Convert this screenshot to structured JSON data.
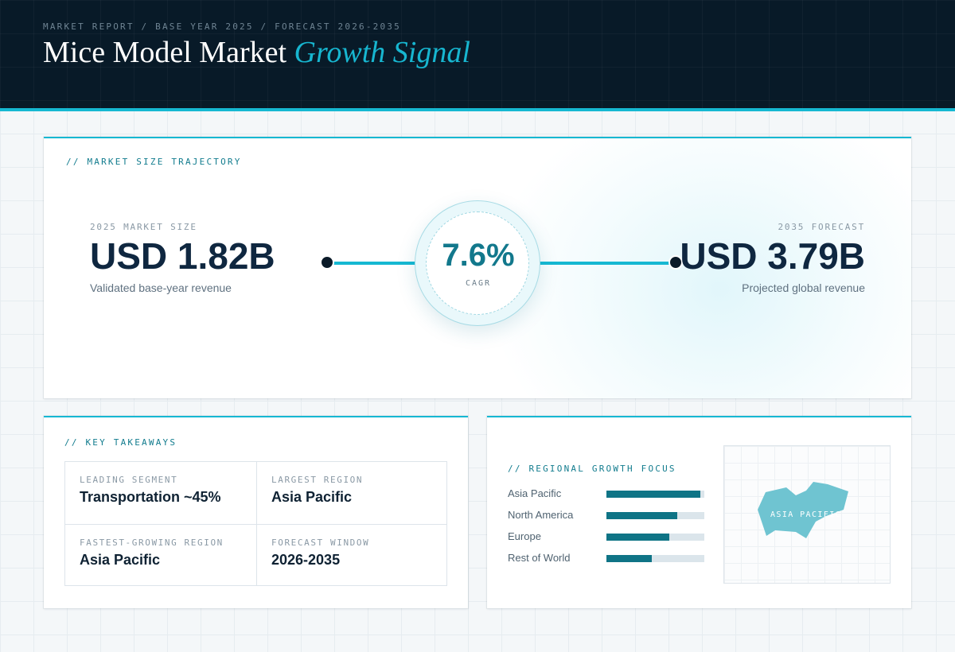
{
  "header": {
    "breadcrumb": "MARKET REPORT / BASE YEAR 2025 / FORECAST 2026-2035",
    "title_main": "Mice Model Market",
    "title_accent": "Growth Signal"
  },
  "trajectory": {
    "label": "// MARKET SIZE TRAJECTORY",
    "start": {
      "label": "2025 MARKET SIZE",
      "value": "USD 1.82B",
      "desc": "Validated base-year revenue"
    },
    "cagr": {
      "value": "7.6%",
      "label": "CAGR"
    },
    "end": {
      "label": "2035 FORECAST",
      "value": "USD 3.79B",
      "desc": "Projected global revenue"
    }
  },
  "takeaways": {
    "label": "// KEY TAKEAWAYS",
    "cells": [
      {
        "label": "LEADING SEGMENT",
        "value": "Transportation ~45%"
      },
      {
        "label": "LARGEST REGION",
        "value": "Asia Pacific"
      },
      {
        "label": "FASTEST-GROWING REGION",
        "value": "Asia Pacific"
      },
      {
        "label": "FORECAST WINDOW",
        "value": "2026-2035"
      }
    ]
  },
  "regional": {
    "label": "// REGIONAL GROWTH FOCUS",
    "map_label": "ASIA PACIFIC"
  },
  "colors": {
    "accent": "#16b8d2",
    "bar": "#0f7486",
    "map_region": "#6fc4d1"
  },
  "chart_data": {
    "type": "bar",
    "orientation": "horizontal",
    "categories": [
      "Asia Pacific",
      "North America",
      "Europe",
      "Rest of World"
    ],
    "values": [
      96,
      72,
      64,
      46
    ],
    "xlim": [
      0,
      100
    ],
    "grid": false
  }
}
